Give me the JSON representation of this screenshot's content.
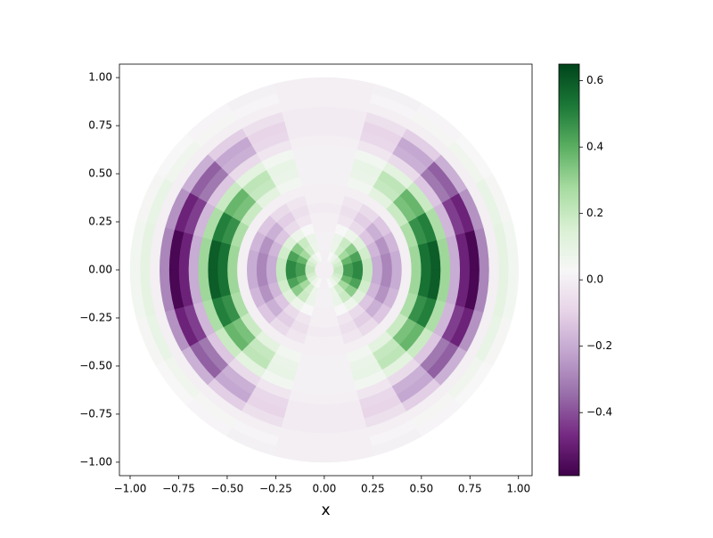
{
  "chart_data": {
    "type": "polar_heatmap",
    "xlabel": "x",
    "xlim": [
      -1.055,
      1.07
    ],
    "ylim": [
      -1.07,
      1.07
    ],
    "xticks": [
      {
        "value": -1,
        "label": "−1.00"
      },
      {
        "value": -0.75,
        "label": "−0.75"
      },
      {
        "value": -0.5,
        "label": "−0.50"
      },
      {
        "value": -0.25,
        "label": "−0.25"
      },
      {
        "value": 0,
        "label": "0.00"
      },
      {
        "value": 0.25,
        "label": "0.25"
      },
      {
        "value": 0.5,
        "label": "0.50"
      },
      {
        "value": 0.75,
        "label": "0.75"
      },
      {
        "value": 1,
        "label": "1.00"
      }
    ],
    "yticks": [
      {
        "value": -1,
        "label": "−1.00"
      },
      {
        "value": -0.75,
        "label": "−0.75"
      },
      {
        "value": -0.5,
        "label": "−0.50"
      },
      {
        "value": -0.25,
        "label": "−0.25"
      },
      {
        "value": 0,
        "label": "0.00"
      },
      {
        "value": 0.25,
        "label": "0.25"
      },
      {
        "value": 0.5,
        "label": "0.50"
      },
      {
        "value": 0.75,
        "label": "0.75"
      },
      {
        "value": 1,
        "label": "1.00"
      }
    ],
    "colormap_colors": [
      "#40004b",
      "#762a83",
      "#9970ab",
      "#c2a5cf",
      "#e7d4e8",
      "#f7f7f7",
      "#d9f0d3",
      "#a6dba0",
      "#5aae61",
      "#1b7837",
      "#00441b"
    ],
    "clim": [
      -0.59,
      0.65
    ],
    "cticks": [
      {
        "value": -0.4,
        "label": "−0.4"
      },
      {
        "value": -0.2,
        "label": "−0.2"
      },
      {
        "value": 0,
        "label": "0.0"
      },
      0.2,
      0.4,
      0.6
    ],
    "r_edges": [
      0,
      0.05,
      0.1,
      0.15,
      0.2,
      0.25,
      0.3,
      0.35,
      0.4,
      0.45,
      0.5,
      0.55,
      0.6,
      0.65,
      0.7,
      0.75,
      0.8,
      0.85,
      0.9,
      0.95,
      1
    ],
    "theta_edges": [
      0,
      15,
      30,
      45,
      60,
      75,
      90,
      105,
      120,
      135,
      150,
      165,
      180,
      195,
      210,
      225,
      240,
      255,
      270,
      285,
      300,
      315,
      330,
      345,
      360
    ],
    "values": [
      [
        0,
        0,
        0,
        0,
        0,
        0,
        0,
        0,
        0,
        0,
        0,
        0,
        0,
        0,
        0,
        0,
        0,
        0,
        0,
        0,
        0,
        0,
        0,
        0
      ],
      [
        0.2,
        0.17,
        0.13,
        0.07,
        0.03,
        0,
        0,
        0.03,
        0.07,
        0.13,
        0.17,
        0.2,
        0.2,
        0.17,
        0.13,
        0.07,
        0.03,
        0,
        0,
        0.03,
        0.07,
        0.13,
        0.17,
        0.2
      ],
      [
        0.44,
        0.38,
        0.28,
        0.17,
        0.07,
        0.01,
        0.01,
        0.07,
        0.17,
        0.28,
        0.38,
        0.44,
        0.44,
        0.38,
        0.28,
        0.17,
        0.07,
        0.01,
        0.01,
        0.07,
        0.17,
        0.28,
        0.38,
        0.44
      ],
      [
        0.49,
        0.43,
        0.32,
        0.19,
        0.08,
        0.01,
        0.01,
        0.08,
        0.19,
        0.32,
        0.43,
        0.49,
        0.49,
        0.43,
        0.32,
        0.19,
        0.08,
        0.01,
        0.01,
        0.08,
        0.19,
        0.32,
        0.43,
        0.49
      ],
      [
        0.2,
        0.17,
        0.13,
        0.07,
        0.03,
        0,
        0,
        0.03,
        0.07,
        0.13,
        0.17,
        0.2,
        0.2,
        0.17,
        0.13,
        0.07,
        0.03,
        0,
        0,
        0.03,
        0.07,
        0.13,
        0.17,
        0.2
      ],
      [
        -0.2,
        -0.17,
        -0.13,
        -0.07,
        -0.03,
        0,
        0,
        -0.03,
        -0.07,
        -0.13,
        -0.17,
        -0.2,
        -0.2,
        -0.17,
        -0.13,
        -0.07,
        -0.03,
        0,
        0,
        -0.03,
        -0.07,
        -0.13,
        -0.17,
        -0.2
      ],
      [
        -0.29,
        -0.26,
        -0.19,
        -0.11,
        -0.05,
        -0.01,
        -0.01,
        -0.05,
        -0.11,
        -0.19,
        -0.26,
        -0.29,
        -0.29,
        -0.26,
        -0.19,
        -0.11,
        -0.05,
        -0.01,
        -0.01,
        -0.05,
        -0.11,
        -0.19,
        -0.26,
        -0.29
      ],
      [
        -0.2,
        -0.17,
        -0.13,
        -0.07,
        -0.03,
        0,
        0,
        -0.03,
        -0.07,
        -0.13,
        -0.17,
        -0.2,
        -0.2,
        -0.17,
        -0.13,
        -0.07,
        -0.03,
        0,
        0,
        -0.03,
        -0.07,
        -0.13,
        -0.17,
        -0.2
      ],
      [
        0,
        0,
        0,
        0,
        0,
        0,
        0,
        0,
        0,
        0,
        0,
        0,
        0,
        0,
        0,
        0,
        0,
        0,
        0,
        0,
        0,
        0,
        0,
        0
      ],
      [
        0.29,
        0.26,
        0.19,
        0.11,
        0.05,
        0.01,
        0.01,
        0.05,
        0.11,
        0.19,
        0.26,
        0.29,
        0.29,
        0.26,
        0.19,
        0.11,
        0.05,
        0.01,
        0.01,
        0.05,
        0.11,
        0.19,
        0.26,
        0.29
      ],
      [
        0.54,
        0.47,
        0.35,
        0.2,
        0.08,
        0.01,
        0.01,
        0.08,
        0.2,
        0.35,
        0.47,
        0.54,
        0.54,
        0.47,
        0.35,
        0.2,
        0.08,
        0.01,
        0.01,
        0.08,
        0.2,
        0.35,
        0.47,
        0.54
      ],
      [
        0.59,
        0.51,
        0.38,
        0.22,
        0.09,
        0.01,
        0.01,
        0.09,
        0.22,
        0.38,
        0.51,
        0.59,
        0.59,
        0.51,
        0.38,
        0.22,
        0.09,
        0.01,
        0.01,
        0.09,
        0.22,
        0.38,
        0.51,
        0.59
      ],
      [
        0.29,
        0.26,
        0.19,
        0.11,
        0.05,
        0.01,
        0.01,
        0.05,
        0.11,
        0.19,
        0.26,
        0.29,
        0.29,
        0.26,
        0.19,
        0.11,
        0.05,
        0.01,
        0.01,
        0.05,
        0.11,
        0.19,
        0.26,
        0.29
      ],
      [
        -0.2,
        -0.17,
        -0.13,
        -0.07,
        -0.03,
        0,
        0,
        -0.03,
        -0.07,
        -0.13,
        -0.17,
        -0.2,
        -0.2,
        -0.17,
        -0.13,
        -0.07,
        -0.03,
        0,
        0,
        -0.03,
        -0.07,
        -0.13,
        -0.17,
        -0.2
      ],
      [
        -0.49,
        -0.43,
        -0.32,
        -0.19,
        -0.08,
        -0.01,
        -0.01,
        -0.08,
        -0.19,
        -0.32,
        -0.43,
        -0.49,
        -0.49,
        -0.43,
        -0.32,
        -0.19,
        -0.08,
        -0.01,
        -0.01,
        -0.08,
        -0.19,
        -0.32,
        -0.43,
        -0.49
      ],
      [
        -0.57,
        -0.49,
        -0.37,
        -0.21,
        -0.09,
        -0.01,
        -0.01,
        -0.09,
        -0.21,
        -0.37,
        -0.49,
        -0.57,
        -0.57,
        -0.49,
        -0.37,
        -0.21,
        -0.09,
        -0.01,
        -0.01,
        -0.09,
        -0.21,
        -0.37,
        -0.49,
        -0.57
      ],
      [
        -0.29,
        -0.26,
        -0.19,
        -0.11,
        -0.05,
        -0.01,
        -0.01,
        -0.05,
        -0.11,
        -0.19,
        -0.26,
        -0.29,
        -0.29,
        -0.26,
        -0.19,
        -0.11,
        -0.05,
        -0.01,
        -0.01,
        -0.05,
        -0.11,
        -0.19,
        -0.26,
        -0.29
      ],
      [
        0,
        0,
        0,
        0,
        0,
        0,
        0,
        0,
        0,
        0,
        0,
        0,
        0,
        0,
        0,
        0,
        0,
        0,
        0,
        0,
        0,
        0,
        0,
        0
      ],
      [
        0.1,
        0.09,
        0.06,
        0.04,
        0.02,
        0,
        0,
        0.02,
        0.04,
        0.06,
        0.09,
        0.1,
        0.1,
        0.09,
        0.06,
        0.04,
        0.02,
        0,
        0,
        0.02,
        0.04,
        0.06,
        0.09,
        0.1
      ],
      [
        0.05,
        0.04,
        0.03,
        0.02,
        0.01,
        0,
        0,
        0.01,
        0.02,
        0.03,
        0.04,
        0.05,
        0.05,
        0.04,
        0.03,
        0.02,
        0.01,
        0,
        0,
        0.01,
        0.02,
        0.03,
        0.04,
        0.05
      ]
    ]
  }
}
